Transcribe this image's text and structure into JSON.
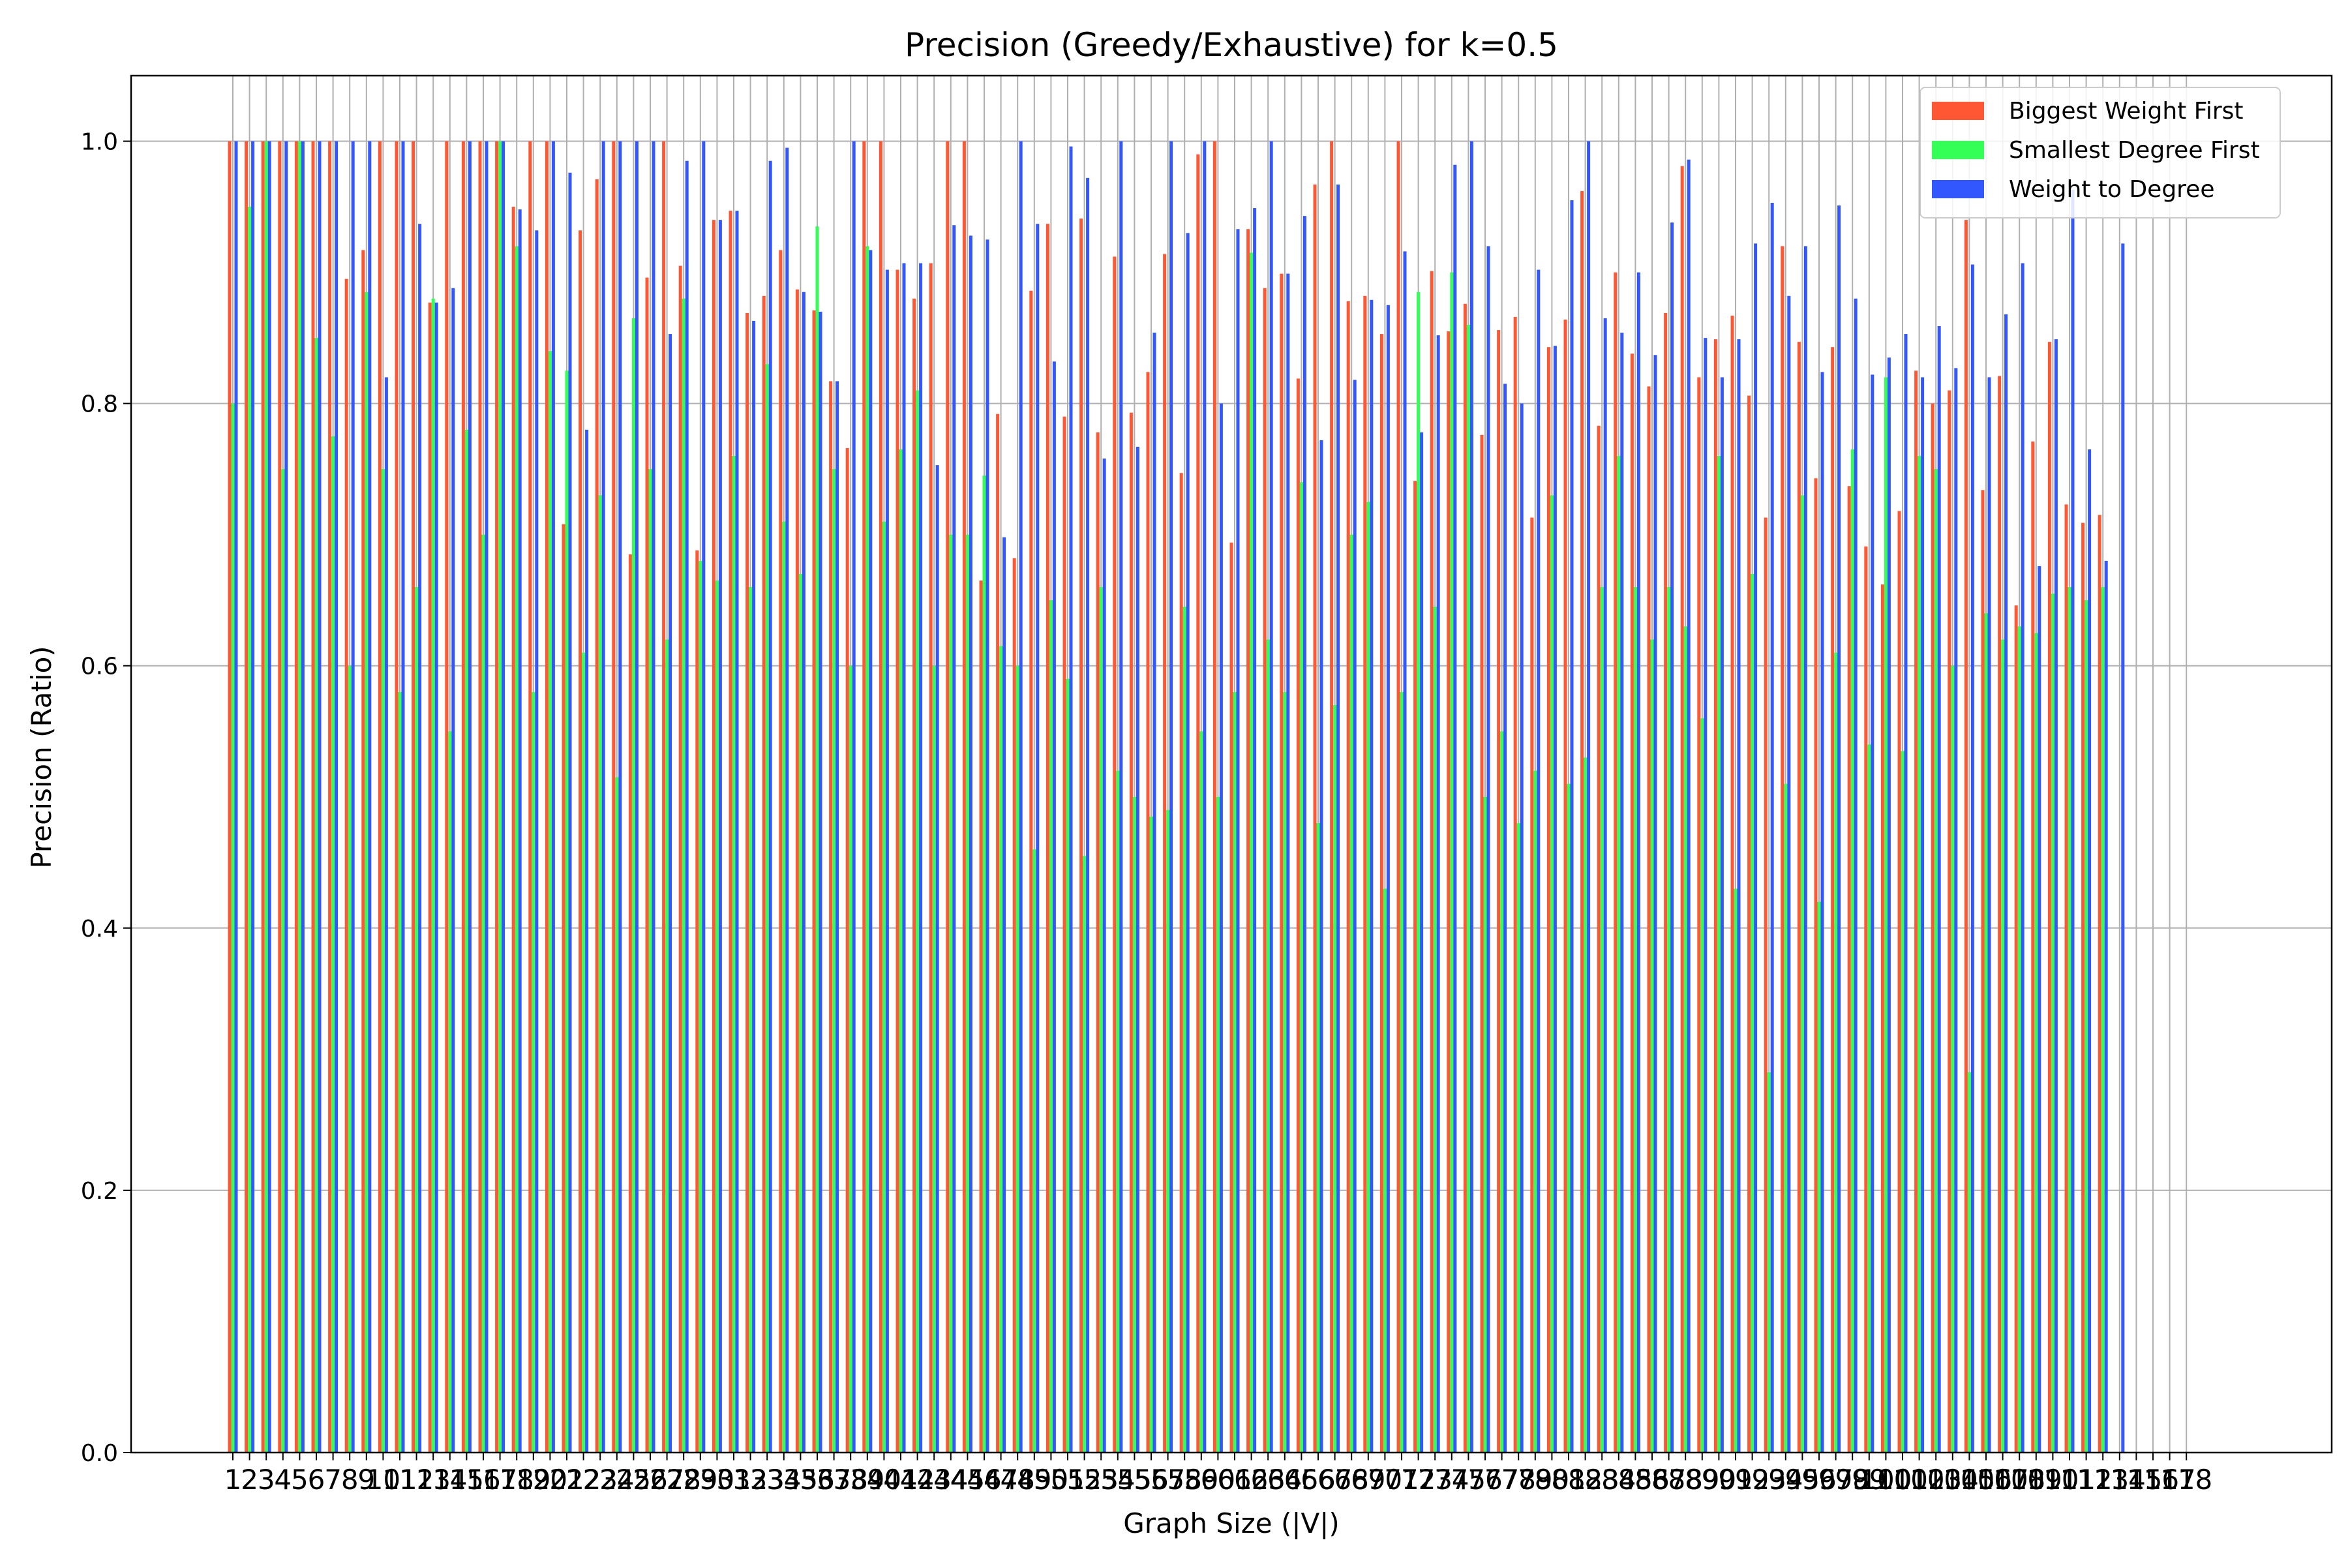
{
  "chart_data": {
    "type": "bar",
    "title": "Precision (Greedy/Exhaustive) for k=0.5",
    "xlabel": "Graph Size (|V|)",
    "ylabel": "Precision (Ratio)",
    "ylim": [
      0,
      1.05
    ],
    "yticks": [
      "0.0",
      "0.2",
      "0.4",
      "0.6",
      "0.8",
      "1.0"
    ],
    "grid": "both",
    "legend_position": "top-right",
    "categories": [
      "1",
      "2",
      "3",
      "4",
      "5",
      "6",
      "7",
      "8",
      "9",
      "10",
      "11",
      "12",
      "13",
      "14",
      "15",
      "16",
      "17",
      "18",
      "19",
      "20",
      "21",
      "22",
      "23",
      "24",
      "25",
      "26",
      "27",
      "28",
      "29",
      "30",
      "31",
      "32",
      "33",
      "34",
      "35",
      "36",
      "37",
      "38",
      "39",
      "40",
      "41",
      "42",
      "43",
      "44",
      "45",
      "46",
      "47",
      "48",
      "49",
      "50",
      "51",
      "52",
      "53",
      "54",
      "55",
      "56",
      "57",
      "58",
      "59",
      "60",
      "61",
      "62",
      "63",
      "64",
      "65",
      "66",
      "67",
      "68",
      "69",
      "70",
      "71",
      "72",
      "73",
      "74",
      "75",
      "76",
      "77",
      "78",
      "79",
      "80",
      "81",
      "82",
      "83",
      "84",
      "85",
      "86",
      "87",
      "88",
      "89",
      "90",
      "91",
      "92",
      "93",
      "94",
      "95",
      "96",
      "97",
      "98",
      "99",
      "100",
      "101",
      "102",
      "103",
      "104",
      "105",
      "106",
      "107",
      "108",
      "109",
      "110",
      "111",
      "112",
      "113",
      "114",
      "115",
      "116",
      "117",
      "118"
    ],
    "series": [
      {
        "name": "Biggest Weight First",
        "color": "#ff5733",
        "values": [
          1.0,
          1.0,
          1.0,
          1.0,
          1.0,
          1.0,
          1.0,
          0.895,
          0.917,
          1.0,
          1.0,
          1.0,
          0.877,
          1.0,
          1.0,
          1.0,
          1.0,
          0.95,
          1.0,
          1.0,
          0.708,
          0.932,
          0.971,
          1.0,
          0.685,
          0.896,
          1.0,
          0.905,
          0.688,
          0.94,
          0.947,
          0.869,
          0.882,
          0.917,
          0.887,
          0.871,
          0.817,
          0.766,
          1.0,
          1.0,
          0.902,
          0.88,
          0.907,
          1.0,
          1.0,
          0.665,
          0.792,
          0.682,
          0.886,
          0.937,
          0.79,
          0.941,
          0.778,
          0.912,
          0.793,
          0.824,
          0.914,
          0.747,
          0.99,
          1.0,
          0.694,
          0.933,
          0.888,
          0.899,
          0.819,
          0.967,
          1.0,
          0.878,
          0.882,
          0.853,
          1.0,
          0.741,
          0.901,
          0.855,
          0.876,
          0.776,
          0.856,
          0.866,
          0.713,
          0.843,
          0.864,
          0.962,
          0.783,
          0.9,
          0.838,
          0.813,
          0.869,
          0.981,
          0.82,
          0.849,
          0.867,
          0.806,
          0.713,
          0.92,
          0.847,
          0.743,
          0.843,
          0.737,
          0.691,
          0.662,
          0.718,
          0.825,
          0.8,
          0.81,
          0.94,
          0.734,
          0.821,
          0.646,
          0.771,
          0.847,
          0.723,
          0.709,
          0.715,
          0.0,
          0.0,
          0.0,
          0.0,
          0.0
        ]
      },
      {
        "name": "Smallest Degree First",
        "color": "#33ff57",
        "values": [
          0.8,
          0.95,
          1.0,
          0.75,
          1.0,
          0.85,
          0.775,
          0.6,
          0.885,
          0.75,
          0.58,
          0.66,
          0.88,
          0.55,
          0.78,
          0.7,
          1.0,
          0.92,
          0.58,
          0.84,
          0.825,
          0.61,
          0.73,
          0.515,
          0.865,
          0.75,
          0.62,
          0.88,
          0.68,
          0.665,
          0.76,
          0.66,
          0.83,
          0.71,
          0.67,
          0.935,
          0.75,
          0.6,
          0.92,
          0.71,
          0.765,
          0.81,
          0.6,
          0.7,
          0.7,
          0.745,
          0.615,
          0.6,
          0.46,
          0.65,
          0.59,
          0.455,
          0.66,
          0.52,
          0.5,
          0.485,
          0.49,
          0.645,
          0.55,
          0.5,
          0.58,
          0.915,
          0.62,
          0.58,
          0.74,
          0.48,
          0.57,
          0.7,
          0.725,
          0.43,
          0.58,
          0.885,
          0.645,
          0.9,
          0.86,
          0.5,
          0.55,
          0.48,
          0.52,
          0.73,
          0.51,
          0.53,
          0.66,
          0.76,
          0.66,
          0.62,
          0.66,
          0.63,
          0.56,
          0.76,
          0.43,
          0.67,
          0.29,
          0.51,
          0.73,
          0.42,
          0.61,
          0.765,
          0.54,
          0.82,
          0.535,
          0.76,
          0.75,
          0.6,
          0.29,
          0.64,
          0.62,
          0.63,
          0.625,
          0.655,
          0.66,
          0.65,
          0.66,
          0.0,
          0.0,
          0.0,
          0.0,
          0.0
        ]
      },
      {
        "name": "Weight to Degree",
        "color": "#3357ff",
        "values": [
          1.0,
          1.0,
          1.0,
          1.0,
          1.0,
          1.0,
          1.0,
          1.0,
          1.0,
          0.82,
          1.0,
          0.937,
          0.877,
          0.888,
          1.0,
          1.0,
          1.0,
          0.948,
          0.932,
          1.0,
          0.976,
          0.78,
          1.0,
          1.0,
          1.0,
          1.0,
          0.853,
          0.985,
          1.0,
          0.94,
          0.947,
          0.863,
          0.985,
          0.995,
          0.885,
          0.87,
          0.817,
          1.0,
          0.917,
          0.902,
          0.907,
          0.907,
          0.753,
          0.936,
          0.928,
          0.925,
          0.698,
          1.0,
          0.937,
          0.832,
          0.996,
          0.972,
          0.758,
          1.0,
          0.767,
          0.854,
          1.0,
          0.93,
          1.0,
          0.8,
          0.933,
          0.949,
          1.0,
          0.899,
          0.943,
          0.772,
          0.967,
          0.818,
          0.879,
          0.875,
          0.916,
          0.778,
          0.852,
          0.982,
          1.0,
          0.92,
          0.815,
          0.8,
          0.902,
          0.844,
          0.955,
          1.0,
          0.865,
          0.854,
          0.9,
          0.837,
          0.938,
          0.986,
          0.85,
          0.82,
          0.849,
          0.922,
          0.953,
          0.882,
          0.92,
          0.824,
          0.951,
          0.88,
          0.822,
          0.835,
          0.853,
          0.82,
          0.859,
          0.827,
          0.906,
          0.82,
          0.868,
          0.907,
          0.676,
          0.849,
          0.963,
          0.765,
          0.68,
          0.922,
          0.0,
          0.0,
          0.0,
          0.0
        ]
      }
    ]
  }
}
